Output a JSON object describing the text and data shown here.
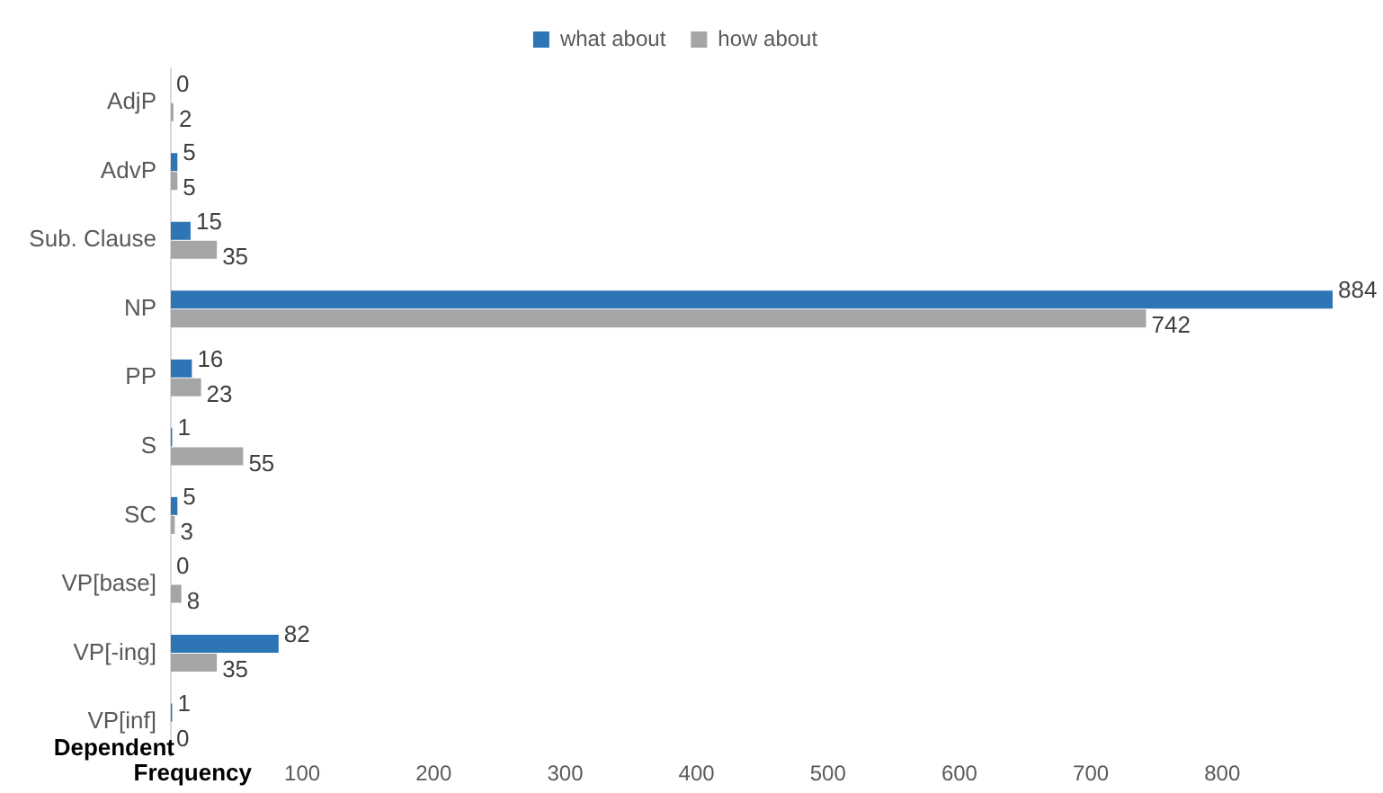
{
  "chart_data": {
    "type": "bar",
    "orientation": "horizontal",
    "xlabel": "Frequency",
    "ylabel": "Dependent",
    "categories": [
      "AdjP",
      "AdvP",
      "Sub. Clause",
      "NP",
      "PP",
      "S",
      "SC",
      "VP[base]",
      "VP[-ing]",
      "VP[inf]"
    ],
    "series": [
      {
        "name": "what about",
        "color": "#2e75b6",
        "values": [
          0,
          5,
          15,
          884,
          16,
          1,
          5,
          0,
          82,
          1
        ]
      },
      {
        "name": "how about",
        "color": "#a5a5a5",
        "values": [
          2,
          5,
          35,
          742,
          23,
          55,
          3,
          8,
          35,
          0
        ]
      }
    ],
    "xlim": [
      0,
      884
    ],
    "xticks": [
      100,
      200,
      300,
      400,
      500,
      600,
      700,
      800
    ],
    "data_labels": true,
    "legend": "top"
  }
}
